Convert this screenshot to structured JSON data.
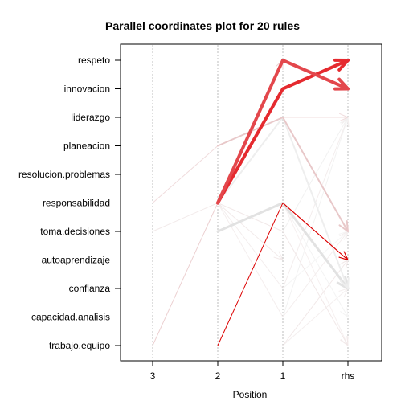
{
  "chart_data": {
    "type": "parallel-coordinates",
    "title": "Parallel coordinates plot for 20 rules",
    "xlabel": "Position",
    "x_axes": [
      "3",
      "2",
      "1",
      "rhs"
    ],
    "y_items": [
      "respeto",
      "innovacion",
      "liderazgo",
      "planeacion",
      "resolucion.problemas",
      "responsabilidad",
      "toma.decisiones",
      "autoaprendizaje",
      "confianza",
      "capacidad.analisis",
      "trabajo.equipo"
    ],
    "grid": true,
    "rules": [
      {
        "path": [
          null,
          "responsabilidad",
          "respeto",
          "innovacion"
        ],
        "color": "#e3474c",
        "width": 4
      },
      {
        "path": [
          null,
          "responsabilidad",
          "innovacion",
          "respeto"
        ],
        "color": "#e52a2f",
        "width": 4
      },
      {
        "path": [
          null,
          "trabajo.equipo",
          "responsabilidad",
          "autoaprendizaje"
        ],
        "color": "#dc0000",
        "width": 1
      },
      {
        "path": [
          null,
          null,
          "responsabilidad",
          "autoaprendizaje"
        ],
        "color": "#e2161c",
        "width": 1
      },
      {
        "path": [
          null,
          "planeacion",
          "liderazgo",
          "toma.decisiones"
        ],
        "color": "#e8c8c9",
        "width": 2
      },
      {
        "path": [
          "responsabilidad",
          "planeacion",
          "liderazgo",
          "liderazgo"
        ],
        "color": "#f0dcdd",
        "width": 1
      },
      {
        "path": [
          "trabajo.equipo",
          "responsabilidad",
          "respeto",
          null
        ],
        "color": "#ecd0d1",
        "width": 1
      },
      {
        "path": [
          null,
          "responsabilidad",
          "liderazgo",
          "confianza"
        ],
        "color": "#eeeeee",
        "width": 2
      },
      {
        "path": [
          null,
          "toma.decisiones",
          "responsabilidad",
          "confianza"
        ],
        "color": "#e2e2e2",
        "width": 3
      },
      {
        "path": [
          null,
          null,
          "toma.decisiones",
          "liderazgo"
        ],
        "color": "#f1f1f1",
        "width": 1
      },
      {
        "path": [
          "toma.decisiones",
          "responsabilidad",
          "autoaprendizaje",
          null
        ],
        "color": "#f2eaea",
        "width": 1
      },
      {
        "path": [
          null,
          "responsabilidad",
          "confianza",
          "liderazgo"
        ],
        "color": "#f3eded",
        "width": 1
      },
      {
        "path": [
          null,
          "responsabilidad",
          "capacidad.analisis",
          "toma.decisiones"
        ],
        "color": "#f4eeee",
        "width": 1
      },
      {
        "path": [
          null,
          null,
          "trabajo.equipo",
          "autoaprendizaje"
        ],
        "color": "#f1e8e8",
        "width": 1
      },
      {
        "path": [
          null,
          "responsabilidad",
          "toma.decisiones",
          "trabajo.equipo"
        ],
        "color": "#f1e8e8",
        "width": 1
      },
      {
        "path": [
          null,
          null,
          "capacidad.analisis",
          "liderazgo"
        ],
        "color": "#f2f2f2",
        "width": 1
      },
      {
        "path": [
          null,
          null,
          "confianza",
          "toma.decisiones"
        ],
        "color": "#f5f5f5",
        "width": 1
      },
      {
        "path": [
          null,
          null,
          "responsabilidad",
          "capacidad.analisis"
        ],
        "color": "#f3f3f3",
        "width": 1
      },
      {
        "path": [
          null,
          null,
          "trabajo.equipo",
          "confianza"
        ],
        "color": "#f4efef",
        "width": 1
      },
      {
        "path": [
          null,
          null,
          "responsabilidad",
          "trabajo.equipo"
        ],
        "color": "#f6f0f0",
        "width": 1
      }
    ]
  }
}
